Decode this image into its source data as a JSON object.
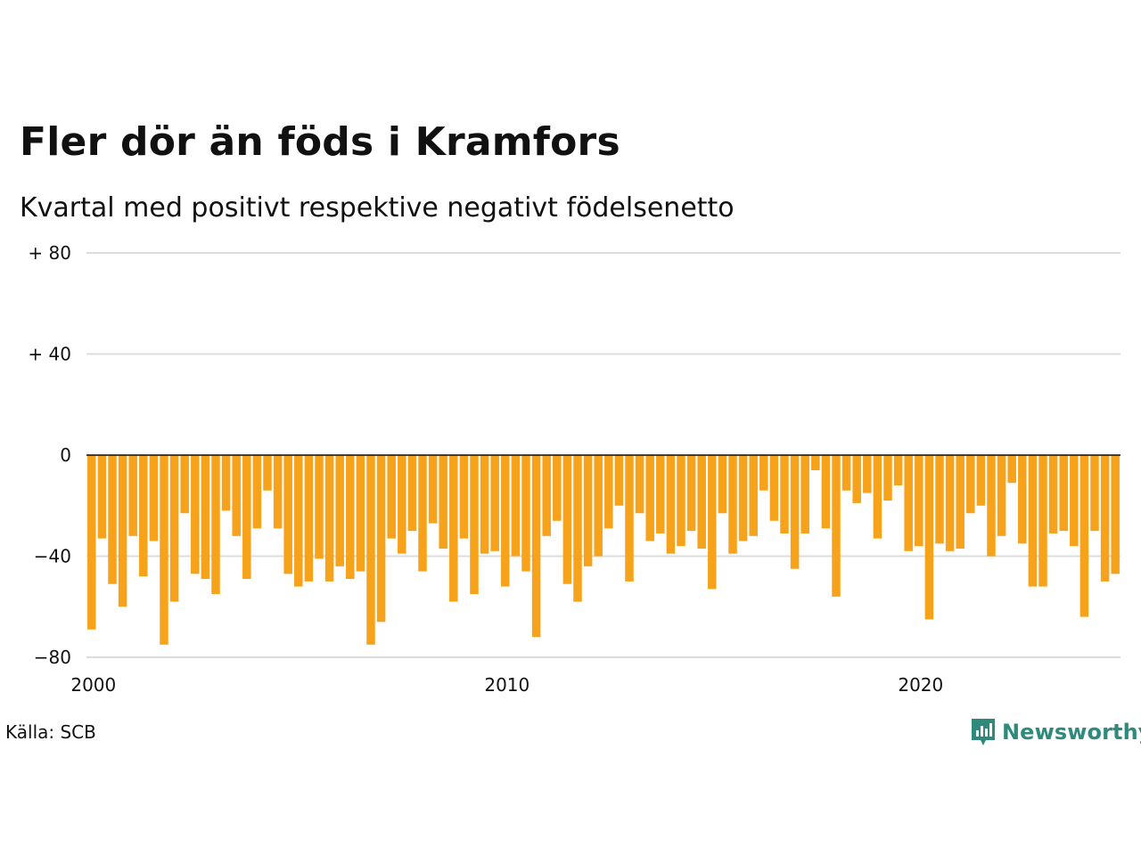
{
  "title": "Fler dör än föds i Kramfors",
  "subtitle": "Kvartal med positivt respektive negativt födelsenetto",
  "source": "Källa: SCB",
  "brand": {
    "name": "Newsworthy",
    "icon": "newsworthy-logo-icon",
    "color": "#2f8a7c"
  },
  "chart_data": {
    "type": "bar",
    "bar_color": "#f7a21b",
    "ylim": [
      -80,
      80
    ],
    "y_ticks": [
      {
        "value": 80,
        "label": "+ 80"
      },
      {
        "value": 40,
        "label": "+ 40"
      },
      {
        "value": 0,
        "label": "0"
      },
      {
        "value": -40,
        "label": "−40"
      },
      {
        "value": -80,
        "label": "−80"
      }
    ],
    "x_ticks": [
      {
        "label": "2000",
        "index": 0
      },
      {
        "label": "2010",
        "index": 40
      },
      {
        "label": "2020",
        "index": 80
      }
    ],
    "grid": true,
    "values": [
      -69,
      -33,
      -51,
      -60,
      -32,
      -48,
      -34,
      -75,
      -58,
      -23,
      -47,
      -49,
      -55,
      -22,
      -32,
      -49,
      -29,
      -14,
      -29,
      -47,
      -52,
      -50,
      -41,
      -50,
      -44,
      -49,
      -46,
      -75,
      -66,
      -33,
      -39,
      -30,
      -46,
      -27,
      -37,
      -58,
      -33,
      -55,
      -39,
      -38,
      -52,
      -40,
      -46,
      -72,
      -32,
      -26,
      -51,
      -58,
      -44,
      -40,
      -29,
      -20,
      -50,
      -23,
      -34,
      -31,
      -39,
      -36,
      -30,
      -37,
      -53,
      -23,
      -39,
      -34,
      -32,
      -14,
      -26,
      -31,
      -45,
      -31,
      -6,
      -29,
      -56,
      -14,
      -19,
      -15,
      -33,
      -18,
      -12,
      -38,
      -36,
      -65,
      -35,
      -38,
      -37,
      -23,
      -20,
      -40,
      -32,
      -11,
      -35,
      -52,
      -52,
      -31,
      -30,
      -36,
      -64,
      -30,
      -50,
      -47
    ]
  }
}
